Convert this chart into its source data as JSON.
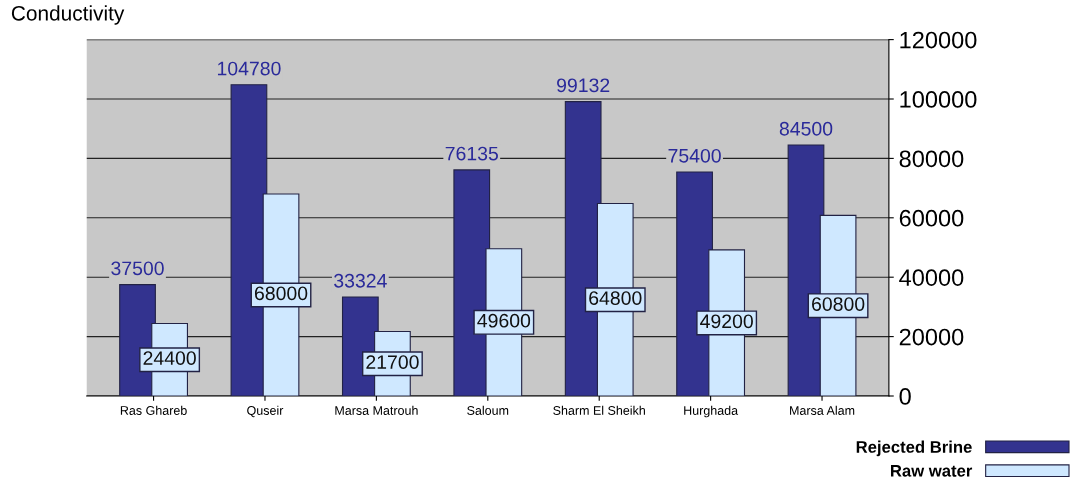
{
  "chart_data": {
    "type": "bar",
    "title": "Conductivity",
    "categories": [
      "Ras Ghareb",
      "Quseir",
      "Marsa Matrouh",
      "Saloum",
      "Sharm El Sheikh",
      "Hurghada",
      "Marsa Alam"
    ],
    "series": [
      {
        "name": "Rejected Brine",
        "color": "#33338f",
        "values": [
          37500,
          104780,
          33324,
          76135,
          99132,
          75400,
          84500
        ]
      },
      {
        "name": "Raw water",
        "color": "#cfe8ff",
        "values": [
          24400,
          68000,
          21700,
          49600,
          64800,
          49200,
          60800
        ]
      }
    ],
    "ylim": [
      0,
      120000
    ],
    "yticks": [
      0,
      20000,
      40000,
      60000,
      80000,
      100000,
      120000
    ],
    "grid": "y",
    "legend": "bottom right",
    "data_labels": true
  }
}
